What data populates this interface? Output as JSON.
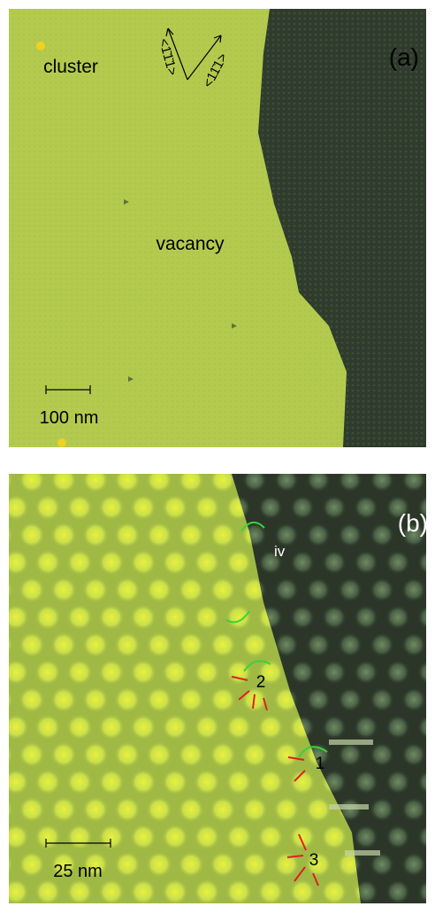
{
  "panels": [
    {
      "label": "(a)",
      "annotations": [
        "cluster",
        "vacancy"
      ],
      "directions": [
        "<1̄1̄1>",
        "<11̄1>"
      ],
      "scale_bar": "100 nm"
    },
    {
      "label": "(b)",
      "annotations": [
        "iv",
        "2",
        "1",
        "3"
      ],
      "scale_bar": "25 nm"
    }
  ]
}
